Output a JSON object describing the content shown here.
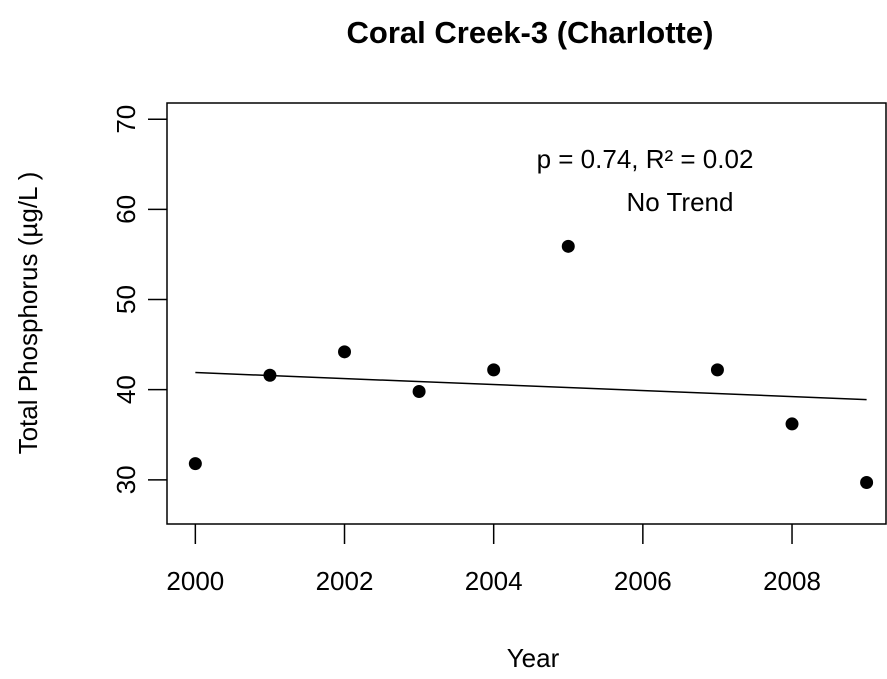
{
  "chart_data": {
    "type": "scatter",
    "title": "Coral Creek-3 (Charlotte)",
    "x_label": "Year",
    "y_label": "Total Phosphorus (µg/L )",
    "x": [
      2000,
      2001,
      2002,
      2003,
      2004,
      2005,
      2007,
      2008,
      2009
    ],
    "values": [
      31.8,
      41.6,
      44.2,
      39.8,
      42.2,
      55.9,
      42.2,
      36.2,
      29.7
    ],
    "color": "#000000",
    "trend_line": {
      "x": [
        2000,
        2009
      ],
      "values": [
        41.9,
        38.9
      ]
    },
    "annotations": [
      "p = 0.74, R² = 0.02",
      "No Trend"
    ],
    "xlim": [
      1999.62,
      2009.26
    ],
    "xticks": [
      2000,
      2002,
      2004,
      2006,
      2008
    ],
    "ylim": [
      25.1,
      71.8
    ],
    "yticks": [
      30,
      40,
      50,
      60,
      70
    ],
    "grid": false
  }
}
